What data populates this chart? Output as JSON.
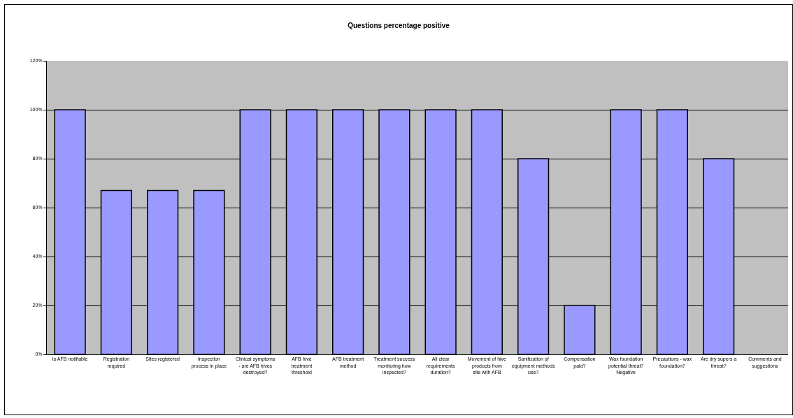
{
  "chart_data": {
    "type": "bar",
    "title": "Questions percentage positive",
    "categories": [
      "Is AFB notifiable",
      "Registration required",
      "Sites registered",
      "Inspection process in place",
      "Clinical symptoms - are AFB hives destroyed?",
      "AFB hive treatment threshold",
      "AFB treatment method",
      "Treatment success monitoring how inspected?",
      "All clear requirements duration?",
      "Movement of hive products from site with AFB",
      "Sanitization of equipment methods use?",
      "Compensation paid?",
      "Wax foundation potential threat? Negative",
      "Precautions - wax foundation?",
      "Are dry supers a threat?",
      "Comments and suggestions"
    ],
    "values": [
      100,
      67,
      67,
      67,
      100,
      100,
      100,
      100,
      100,
      100,
      80,
      20,
      100,
      100,
      80,
      null
    ],
    "color": "#9999ff",
    "ylim": [
      0,
      120
    ],
    "yticks": [
      {
        "value": 0,
        "label": "0%"
      },
      {
        "value": 20,
        "label": "20%"
      },
      {
        "value": 40,
        "label": "40%"
      },
      {
        "value": 60,
        "label": "60%"
      },
      {
        "value": 80,
        "label": "80%"
      },
      {
        "value": 100,
        "label": "100%"
      },
      {
        "value": 120,
        "label": "120%"
      }
    ],
    "grid": "y"
  }
}
